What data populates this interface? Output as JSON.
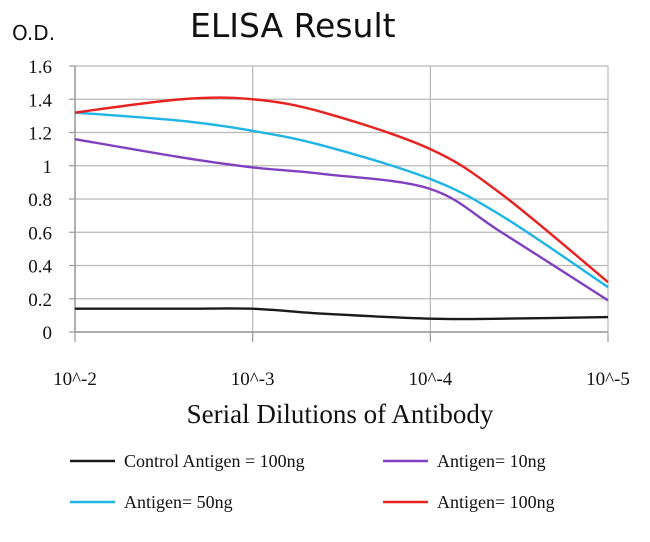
{
  "chart_data": {
    "type": "line",
    "title": "ELISA Result",
    "ylabel": "O.D.",
    "xlabel": "Serial Dilutions of Antibody",
    "x": [
      0,
      0.6,
      1,
      1.4,
      2,
      2.4,
      3
    ],
    "x_ticks": [
      {
        "value": 0,
        "label": "10^-2"
      },
      {
        "value": 1,
        "label": "10^-3"
      },
      {
        "value": 2,
        "label": "10^-4"
      },
      {
        "value": 3,
        "label": "10^-5"
      }
    ],
    "y_ticks": [
      0,
      0.2,
      0.4,
      0.6,
      0.8,
      1,
      1.2,
      1.4,
      1.6
    ],
    "ylim": [
      0,
      1.6
    ],
    "xlim": [
      0,
      3
    ],
    "grid": true,
    "legend_position": "bottom",
    "series": [
      {
        "name": "Control Antigen = 100ng",
        "color": "#1a1a1a",
        "values": [
          0.14,
          0.14,
          0.14,
          0.11,
          0.08,
          0.08,
          0.09
        ]
      },
      {
        "name": "Antigen= 10ng",
        "color": "#7f3fbf",
        "values": [
          1.16,
          1.05,
          0.99,
          0.95,
          0.86,
          0.6,
          0.19
        ]
      },
      {
        "name": "Antigen= 50ng",
        "color": "#1eb4e6",
        "values": [
          1.32,
          1.27,
          1.21,
          1.12,
          0.92,
          0.7,
          0.27
        ]
      },
      {
        "name": "Antigen= 100ng",
        "color": "#e8221e",
        "values": [
          1.32,
          1.4,
          1.4,
          1.32,
          1.1,
          0.83,
          0.3
        ]
      }
    ]
  }
}
